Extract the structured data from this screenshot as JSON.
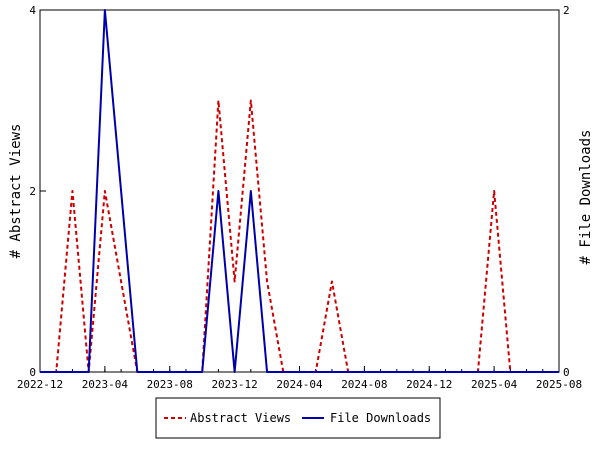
{
  "chart_data": {
    "type": "line",
    "x_ticks": [
      "2022-12",
      "2023-04",
      "2023-08",
      "2023-12",
      "2024-04",
      "2024-08",
      "2024-12",
      "2025-04",
      "2025-08"
    ],
    "x_range": [
      "2022-12",
      "2025-08"
    ],
    "y_left": {
      "label": "# Abstract Views",
      "range": [
        0,
        4
      ],
      "ticks": [
        "0",
        "2",
        "4"
      ]
    },
    "y_right": {
      "label": "# File Downloads",
      "range": [
        0,
        2
      ],
      "ticks": [
        "0",
        "2"
      ]
    },
    "series": [
      {
        "name": "Abstract Views",
        "axis": "left",
        "color": "#cc0000",
        "style": "dashed",
        "points": [
          [
            "2022-12",
            0
          ],
          [
            "2023-01",
            0
          ],
          [
            "2023-02",
            2
          ],
          [
            "2023-03",
            0
          ],
          [
            "2023-04",
            2
          ],
          [
            "2023-05",
            1
          ],
          [
            "2023-06",
            0
          ],
          [
            "2023-07",
            0
          ],
          [
            "2023-08",
            0
          ],
          [
            "2023-09",
            0
          ],
          [
            "2023-10",
            0
          ],
          [
            "2023-11",
            3
          ],
          [
            "2023-12",
            1
          ],
          [
            "2024-01",
            3
          ],
          [
            "2024-02",
            1
          ],
          [
            "2024-03",
            0
          ],
          [
            "2024-04",
            0
          ],
          [
            "2024-05",
            0
          ],
          [
            "2024-06",
            1
          ],
          [
            "2024-07",
            0
          ],
          [
            "2024-08",
            0
          ],
          [
            "2024-09",
            0
          ],
          [
            "2024-10",
            0
          ],
          [
            "2024-11",
            0
          ],
          [
            "2024-12",
            0
          ],
          [
            "2025-01",
            0
          ],
          [
            "2025-02",
            0
          ],
          [
            "2025-03",
            0
          ],
          [
            "2025-04",
            2
          ],
          [
            "2025-05",
            0
          ],
          [
            "2025-06",
            0
          ],
          [
            "2025-07",
            0
          ],
          [
            "2025-08",
            0
          ]
        ]
      },
      {
        "name": "File Downloads",
        "axis": "right",
        "color": "#0000aa",
        "style": "solid",
        "points": [
          [
            "2022-12",
            0
          ],
          [
            "2023-01",
            0
          ],
          [
            "2023-02",
            0
          ],
          [
            "2023-03",
            0
          ],
          [
            "2023-04",
            2
          ],
          [
            "2023-05",
            1
          ],
          [
            "2023-06",
            0
          ],
          [
            "2023-07",
            0
          ],
          [
            "2023-08",
            0
          ],
          [
            "2023-09",
            0
          ],
          [
            "2023-10",
            0
          ],
          [
            "2023-11",
            1
          ],
          [
            "2023-12",
            0
          ],
          [
            "2024-01",
            1
          ],
          [
            "2024-02",
            0
          ],
          [
            "2024-03",
            0
          ],
          [
            "2024-04",
            0
          ],
          [
            "2024-05",
            0
          ],
          [
            "2024-06",
            0
          ],
          [
            "2024-07",
            0
          ],
          [
            "2024-08",
            0
          ],
          [
            "2024-09",
            0
          ],
          [
            "2024-10",
            0
          ],
          [
            "2024-11",
            0
          ],
          [
            "2024-12",
            0
          ],
          [
            "2025-01",
            0
          ],
          [
            "2025-02",
            0
          ],
          [
            "2025-03",
            0
          ],
          [
            "2025-04",
            0
          ],
          [
            "2025-05",
            0
          ],
          [
            "2025-06",
            0
          ],
          [
            "2025-07",
            0
          ],
          [
            "2025-08",
            0
          ]
        ]
      }
    ],
    "legend": {
      "placement": "bottom-center",
      "items": [
        "Abstract Views",
        "File Downloads"
      ]
    },
    "grid": false
  }
}
